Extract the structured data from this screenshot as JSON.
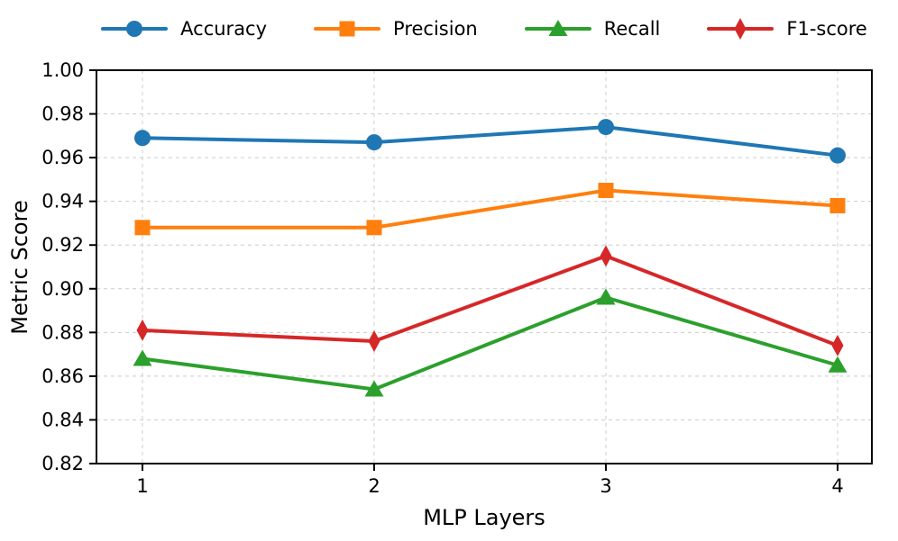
{
  "chart_data": {
    "type": "line",
    "title": "",
    "xlabel": "MLP Layers",
    "ylabel": "Metric Score",
    "x": [
      1,
      2,
      3,
      4
    ],
    "xticks": [
      "1",
      "2",
      "3",
      "4"
    ],
    "yticks": [
      0.82,
      0.84,
      0.86,
      0.88,
      0.9,
      0.92,
      0.94,
      0.96,
      0.98,
      1.0
    ],
    "ylim": [
      0.82,
      1.0
    ],
    "grid": "dashed-both-axes",
    "legend_position": "top-horizontal-frameless",
    "axis_color": "#000000",
    "grid_color": "#cccccc",
    "series": [
      {
        "name": "Accuracy",
        "color": "#1f77b4",
        "marker": "circle",
        "values": [
          0.969,
          0.967,
          0.974,
          0.961
        ]
      },
      {
        "name": "Precision",
        "color": "#ff7f0e",
        "marker": "square",
        "values": [
          0.928,
          0.928,
          0.945,
          0.938
        ]
      },
      {
        "name": "Recall",
        "color": "#2ca02c",
        "marker": "triangle",
        "values": [
          0.868,
          0.854,
          0.896,
          0.865
        ]
      },
      {
        "name": "F1-score",
        "color": "#d62728",
        "marker": "diamond",
        "values": [
          0.881,
          0.876,
          0.915,
          0.874
        ]
      }
    ]
  }
}
